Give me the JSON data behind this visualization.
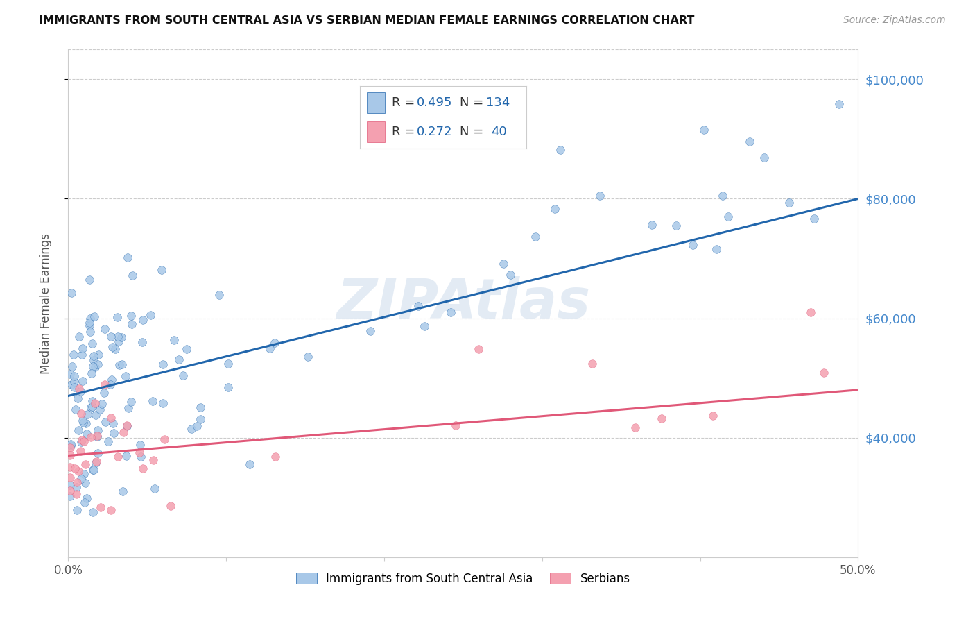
{
  "title": "IMMIGRANTS FROM SOUTH CENTRAL ASIA VS SERBIAN MEDIAN FEMALE EARNINGS CORRELATION CHART",
  "source": "Source: ZipAtlas.com",
  "ylabel": "Median Female Earnings",
  "xlim": [
    0.0,
    0.5
  ],
  "ylim": [
    20000,
    105000
  ],
  "yticks": [
    40000,
    60000,
    80000,
    100000
  ],
  "ytick_labels": [
    "$40,000",
    "$60,000",
    "$80,000",
    "$100,000"
  ],
  "xticks": [
    0.0,
    0.1,
    0.2,
    0.3,
    0.4,
    0.5
  ],
  "xtick_labels": [
    "0.0%",
    "",
    "",
    "",
    "",
    "50.0%"
  ],
  "blue_color": "#a8c8e8",
  "pink_color": "#f4a0b0",
  "blue_line_color": "#2166ac",
  "pink_line_color": "#e05878",
  "blue_R": 0.495,
  "blue_N": 134,
  "pink_R": 0.272,
  "pink_N": 40,
  "watermark": "ZIPAtlas",
  "background_color": "#ffffff",
  "grid_color": "#cccccc",
  "right_axis_color": "#4488cc",
  "blue_intercept": 47000,
  "blue_slope": 66000,
  "pink_intercept": 37000,
  "pink_slope": 22000
}
